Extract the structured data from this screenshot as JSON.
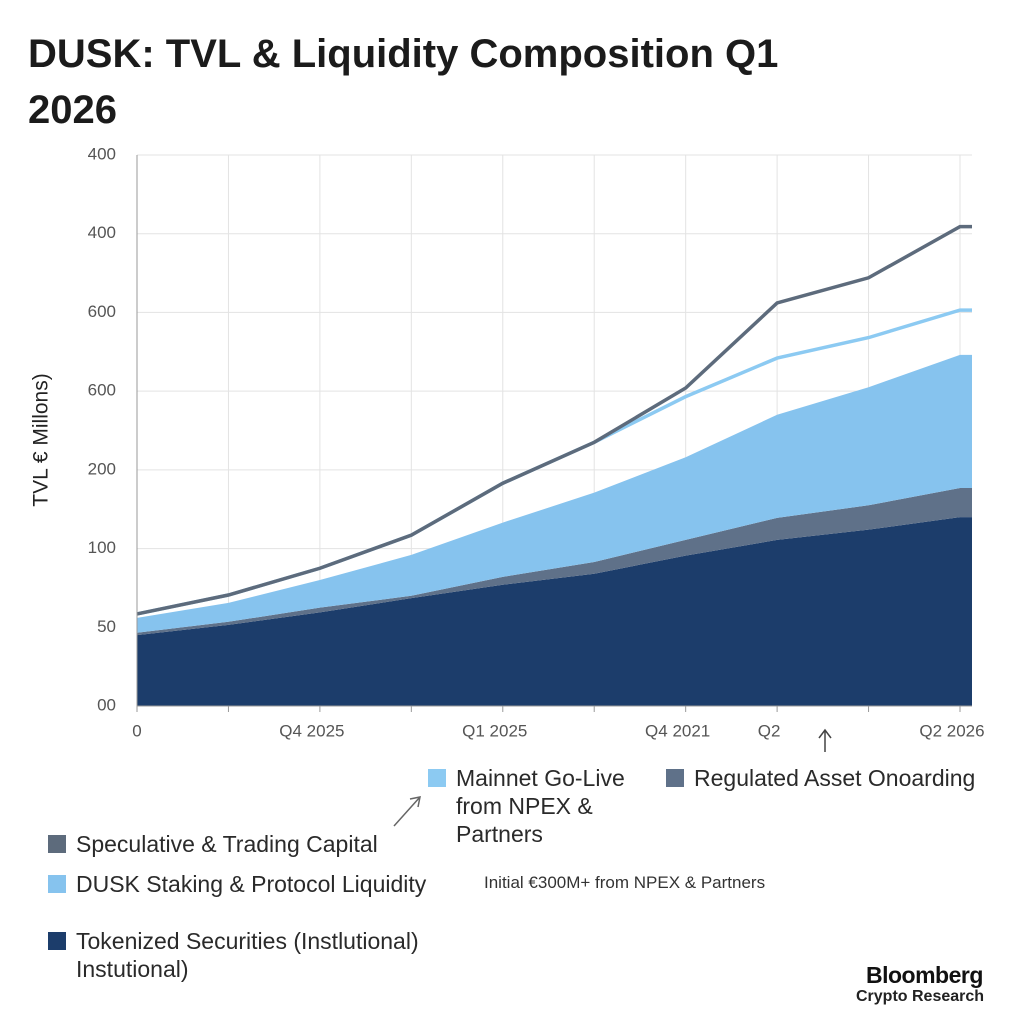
{
  "chart_data": {
    "type": "stacked-area",
    "title": "DUSK: TVL & Liquidity Composition Q1 2026",
    "y_label": "TVL € Millons)",
    "annotation": "Initial €300M+ from NPEX & Partners",
    "source": "Bloomberg",
    "source_sub": "Crypto Research",
    "categories": [
      "0",
      null,
      "Q4 2025",
      null,
      "Q1 2025",
      null,
      "Q4 2021",
      "Q2",
      null,
      "Q2 2026"
    ],
    "ylim": [
      0,
      7
    ],
    "yticks": [
      {
        "value": 0,
        "label": "00"
      },
      {
        "value": 1,
        "label": "50"
      },
      {
        "value": 2,
        "label": "100"
      },
      {
        "value": 3,
        "label": "200"
      },
      {
        "value": 4,
        "label": "600"
      },
      {
        "value": 5,
        "label": "600"
      },
      {
        "value": 6,
        "label": "400"
      },
      {
        "value": 7,
        "label": "400"
      }
    ],
    "grid": true,
    "series": [
      {
        "name": "Tokenized Securities (Instlutional) Instutional)",
        "kind": "area",
        "color": "#1c3d6b",
        "values": [
          0.9,
          1.03,
          1.19,
          1.37,
          1.54,
          1.68,
          1.91,
          2.11,
          2.24,
          2.4
        ]
      },
      {
        "name": "Regulated Asset Onoarding",
        "kind": "area",
        "color": "#5f7189",
        "values": [
          0.03,
          0.04,
          0.06,
          0.03,
          0.1,
          0.15,
          0.2,
          0.28,
          0.31,
          0.37
        ]
      },
      {
        "name": "DUSK Staking & Protocol Liquidity",
        "kind": "area",
        "color": "#86c3ee",
        "values": [
          0.19,
          0.24,
          0.35,
          0.52,
          0.69,
          0.88,
          1.05,
          1.31,
          1.5,
          1.69
        ]
      },
      {
        "name": "Mainnet Go-Live from NPEX & Partners",
        "kind": "line",
        "color": "#8ccaf2",
        "values": [
          1.17,
          1.41,
          1.75,
          2.17,
          2.83,
          3.35,
          3.93,
          4.42,
          4.68,
          5.03
        ]
      },
      {
        "name": "Speculative & Trading Capital",
        "kind": "line",
        "color": "#5d6b7c",
        "values": [
          1.17,
          1.41,
          1.75,
          2.17,
          2.83,
          3.35,
          4.04,
          5.12,
          5.44,
          6.09
        ]
      }
    ]
  }
}
